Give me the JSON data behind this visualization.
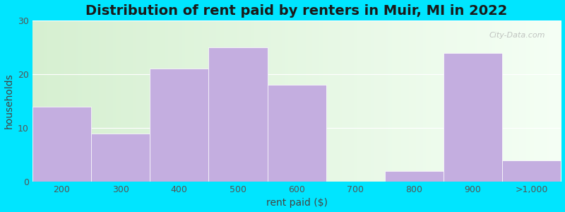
{
  "title": "Distribution of rent paid by renters in Muir, MI in 2022",
  "xlabel": "rent paid ($)",
  "ylabel": "households",
  "categories": [
    "200",
    "300",
    "400",
    "500",
    "600",
    "700",
    "800",
    "900",
    ">1,000"
  ],
  "values": [
    14,
    9,
    21,
    25,
    18,
    0,
    2,
    24,
    4
  ],
  "bar_color": "#c4aee0",
  "bar_edgecolor": "#c4aee0",
  "ylim": [
    0,
    30
  ],
  "yticks": [
    0,
    10,
    20,
    30
  ],
  "background_color": "#00e5ff",
  "title_fontsize": 14,
  "axis_label_fontsize": 10,
  "tick_fontsize": 9,
  "watermark": "City-Data.com"
}
